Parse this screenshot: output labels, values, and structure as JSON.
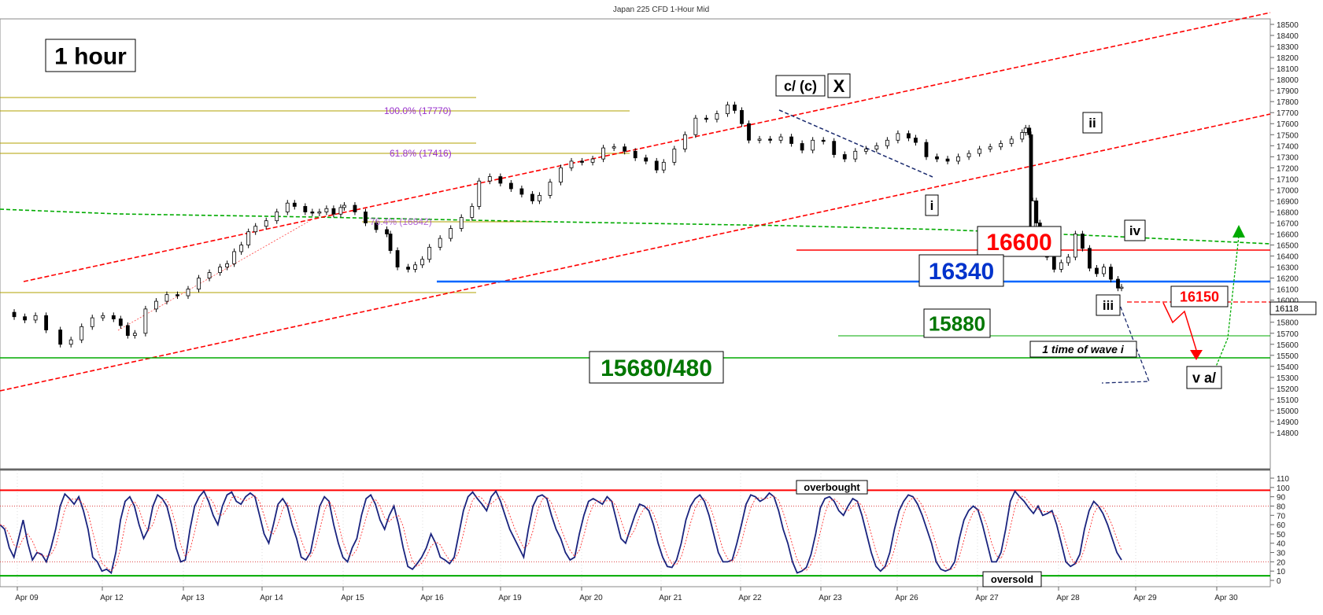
{
  "chart_data": [
    {
      "type": "line",
      "title": "Japan 225 CFD 1-Hour Mid",
      "timeframe_label": "1 hour",
      "x_ticks": [
        "Apr 09",
        "Apr 12",
        "Apr 13",
        "Apr 14",
        "Apr 15",
        "Apr 16",
        "Apr 19",
        "Apr 20",
        "Apr 21",
        "Apr 22",
        "Apr 23",
        "Apr 26",
        "Apr 27",
        "Apr 28",
        "Apr 29",
        "Apr 30"
      ],
      "y_ticks": [
        18500,
        18400,
        18300,
        18200,
        18100,
        18000,
        17900,
        17800,
        17700,
        17600,
        17500,
        17400,
        17300,
        17200,
        17100,
        17000,
        16900,
        16800,
        16700,
        16600,
        16500,
        16400,
        16300,
        16200,
        16100,
        16000,
        15900,
        15800,
        15700,
        15600,
        15500,
        15400,
        15300,
        15200,
        15100,
        15000,
        14900,
        14800
      ],
      "ylim": [
        14700,
        18600
      ],
      "last_price": "16118",
      "series": [
        {
          "style": "candlestick-approx",
          "points": [
            [
              0,
              15890
            ],
            [
              4,
              15850
            ],
            [
              7,
              15820
            ],
            [
              10,
              15860
            ],
            [
              13,
              15730
            ],
            [
              17,
              15600
            ],
            [
              20,
              15640
            ],
            [
              23,
              15760
            ],
            [
              26,
              15840
            ],
            [
              29,
              15860
            ],
            [
              32,
              15830
            ],
            [
              34,
              15770
            ],
            [
              36,
              15680
            ],
            [
              38,
              15700
            ],
            [
              41,
              15920
            ],
            [
              44,
              15990
            ],
            [
              47,
              16050
            ],
            [
              50,
              16040
            ],
            [
              53,
              16100
            ],
            [
              56,
              16200
            ],
            [
              59,
              16250
            ],
            [
              62,
              16300
            ],
            [
              64,
              16330
            ],
            [
              66,
              16440
            ],
            [
              68,
              16500
            ],
            [
              70,
              16620
            ],
            [
              72,
              16670
            ],
            [
              75,
              16720
            ],
            [
              78,
              16800
            ],
            [
              81,
              16880
            ],
            [
              83,
              16850
            ],
            [
              86,
              16800
            ],
            [
              88,
              16790
            ],
            [
              90,
              16800
            ],
            [
              92,
              16830
            ],
            [
              94,
              16780
            ],
            [
              96,
              16840
            ],
            [
              97,
              16860
            ],
            [
              100,
              16800
            ],
            [
              103,
              16700
            ],
            [
              106,
              16640
            ],
            [
              109,
              16600
            ],
            [
              110,
              16450
            ],
            [
              112,
              16300
            ],
            [
              115,
              16280
            ],
            [
              117,
              16320
            ],
            [
              119,
              16370
            ],
            [
              121,
              16480
            ],
            [
              124,
              16560
            ],
            [
              127,
              16650
            ],
            [
              130,
              16750
            ],
            [
              133,
              16850
            ],
            [
              135,
              17080
            ],
            [
              138,
              17120
            ],
            [
              141,
              17060
            ],
            [
              144,
              17010
            ],
            [
              147,
              16960
            ],
            [
              150,
              16900
            ],
            [
              152,
              16950
            ],
            [
              155,
              17070
            ],
            [
              158,
              17200
            ],
            [
              161,
              17260
            ],
            [
              164,
              17250
            ],
            [
              167,
              17280
            ],
            [
              170,
              17380
            ],
            [
              173,
              17390
            ],
            [
              176,
              17350
            ],
            [
              179,
              17290
            ],
            [
              182,
              17260
            ],
            [
              185,
              17180
            ],
            [
              187,
              17250
            ],
            [
              190,
              17370
            ],
            [
              193,
              17500
            ],
            [
              196,
              17650
            ],
            [
              199,
              17640
            ],
            [
              202,
              17690
            ],
            [
              205,
              17770
            ],
            [
              207,
              17720
            ],
            [
              209,
              17600
            ],
            [
              211,
              17450
            ],
            [
              214,
              17460
            ],
            [
              217,
              17450
            ],
            [
              220,
              17480
            ],
            [
              223,
              17420
            ],
            [
              226,
              17360
            ],
            [
              229,
              17450
            ],
            [
              232,
              17440
            ],
            [
              235,
              17320
            ],
            [
              238,
              17280
            ],
            [
              241,
              17350
            ],
            [
              244,
              17370
            ],
            [
              247,
              17400
            ],
            [
              250,
              17450
            ],
            [
              253,
              17510
            ],
            [
              256,
              17470
            ],
            [
              258,
              17430
            ],
            [
              261,
              17300
            ],
            [
              264,
              17280
            ],
            [
              267,
              17260
            ],
            [
              270,
              17300
            ],
            [
              273,
              17330
            ],
            [
              276,
              17370
            ],
            [
              279,
              17390
            ],
            [
              282,
              17420
            ],
            [
              285,
              17460
            ],
            [
              288,
              17520
            ],
            [
              289,
              17560
            ],
            [
              290,
              17500
            ],
            [
              290.5,
              16600
            ],
            [
              291,
              16900
            ],
            [
              292,
              16700
            ],
            [
              293,
              16580
            ],
            [
              295,
              16390
            ],
            [
              297,
              16280
            ],
            [
              299,
              16340
            ],
            [
              301,
              16390
            ],
            [
              303,
              16600
            ],
            [
              305,
              16470
            ],
            [
              307,
              16290
            ],
            [
              309,
              16240
            ],
            [
              311,
              16300
            ],
            [
              313,
              16190
            ],
            [
              315,
              16110
            ],
            [
              316,
              16118
            ]
          ]
        }
      ],
      "red_channel_upper_label": "",
      "horizontal_levels": [
        {
          "label": "16600",
          "value": 16600,
          "color": "#ff0000"
        },
        {
          "label": "16340",
          "value": 16340,
          "color": "#0055ff"
        },
        {
          "label": "15880",
          "value": 15880,
          "color": "#008000"
        },
        {
          "label": "15680/480",
          "value": 15690,
          "color": "#008000"
        },
        {
          "label": "16150",
          "value": 16150,
          "color": "#ff0000"
        }
      ],
      "fib_levels": [
        {
          "label": "100.0% (17770)",
          "value": 17770
        },
        {
          "label": "61.8% (17416)",
          "value": 17416
        },
        {
          "label": "76.4% (16842)",
          "value": 16842
        }
      ],
      "annotations": {
        "wave_cX": "c/ (c)",
        "wave_X": "X",
        "wave_i": "i",
        "wave_ii": "ii",
        "wave_iii": "iii",
        "wave_iv": "iv",
        "wave_va": "v a/",
        "time_note": "1 time of wave i"
      },
      "colors": {
        "channel": "#ff0000",
        "ma": "#00aa00",
        "support": "#00aa00",
        "resistance": "#ff0000",
        "pivot": "#0066ff",
        "fib": "#b0a000",
        "fib_text": "#9933cc"
      }
    },
    {
      "type": "line",
      "title": "",
      "ylim": [
        0,
        110
      ],
      "y_ticks": [
        110,
        100,
        90,
        80,
        70,
        60,
        50,
        40,
        30,
        20,
        10,
        0
      ],
      "overbought_label": "overbought",
      "oversold_label": "oversold",
      "overbought_level": 97,
      "oversold_level": 5,
      "series": [
        {
          "name": "",
          "values": [
            60,
            55,
            35,
            25,
            45,
            65,
            40,
            22,
            30,
            28,
            20,
            35,
            55,
            80,
            93,
            88,
            82,
            90,
            75,
            55,
            25,
            20,
            10,
            12,
            8,
            30,
            65,
            85,
            90,
            80,
            60,
            45,
            55,
            80,
            92,
            88,
            80,
            60,
            35,
            20,
            22,
            55,
            80,
            90,
            96,
            85,
            70,
            60,
            80,
            92,
            95,
            85,
            82,
            90,
            94,
            90,
            70,
            50,
            40,
            60,
            82,
            88,
            80,
            60,
            45,
            25,
            22,
            30,
            55,
            80,
            90,
            85,
            60,
            40,
            25,
            20,
            35,
            45,
            70,
            88,
            92,
            82,
            65,
            55,
            70,
            80,
            60,
            35,
            15,
            12,
            18,
            25,
            35,
            50,
            40,
            25,
            22,
            18,
            25,
            50,
            75,
            90,
            95,
            88,
            82,
            75,
            90,
            96,
            85,
            70,
            55,
            45,
            35,
            25,
            55,
            80,
            90,
            92,
            88,
            70,
            55,
            45,
            30,
            22,
            25,
            50,
            70,
            85,
            88,
            85,
            82,
            90,
            85,
            65,
            45,
            40,
            55,
            70,
            82,
            80,
            75,
            60,
            40,
            25,
            15,
            14,
            22,
            40,
            65,
            80,
            88,
            92,
            85,
            70,
            50,
            30,
            20,
            20,
            22,
            40,
            60,
            82,
            92,
            90,
            85,
            88,
            94,
            90,
            75,
            55,
            40,
            20,
            8,
            10,
            14,
            28,
            50,
            78,
            88,
            90,
            85,
            75,
            70,
            80,
            88,
            85,
            70,
            50,
            30,
            15,
            10,
            15,
            30,
            55,
            75,
            85,
            92,
            90,
            82,
            70,
            55,
            40,
            20,
            12,
            10,
            12,
            20,
            45,
            65,
            75,
            80,
            76,
            60,
            40,
            20,
            20,
            30,
            55,
            85,
            96,
            90,
            85,
            78,
            72,
            80,
            70,
            72,
            75,
            60,
            40,
            20,
            15,
            18,
            28,
            55,
            75,
            85,
            80,
            72,
            60,
            45,
            30,
            22
          ]
        }
      ]
    }
  ]
}
